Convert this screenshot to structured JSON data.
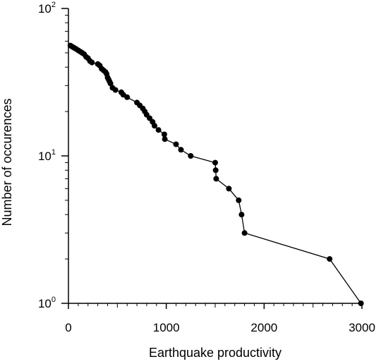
{
  "chart_data": {
    "type": "line",
    "title": "",
    "xlabel": "Earthquake productivity",
    "ylabel": "Number of occurences",
    "xlim": [
      0,
      3000
    ],
    "ylim": [
      1,
      100
    ],
    "yscale": "log",
    "xticks": [
      {
        "value": 0,
        "label": "0"
      },
      {
        "value": 1000,
        "label": "1000"
      },
      {
        "value": 2000,
        "label": "2000"
      },
      {
        "value": 3000,
        "label": "3000"
      }
    ],
    "yticks": [
      {
        "value": 1,
        "base": "10",
        "exp": "0"
      },
      {
        "value": 10,
        "base": "10",
        "exp": "1"
      },
      {
        "value": 100,
        "base": "10",
        "exp": "2"
      }
    ],
    "grid": false,
    "series": [
      {
        "color": "#000000",
        "marker": "filled-circle",
        "points": [
          [
            20,
            56
          ],
          [
            40,
            55
          ],
          [
            60,
            54
          ],
          [
            80,
            53
          ],
          [
            100,
            52
          ],
          [
            120,
            51
          ],
          [
            140,
            50
          ],
          [
            160,
            49
          ],
          [
            180,
            47
          ],
          [
            200,
            46
          ],
          [
            220,
            44
          ],
          [
            240,
            43
          ],
          [
            300,
            42
          ],
          [
            320,
            41
          ],
          [
            340,
            39
          ],
          [
            360,
            38
          ],
          [
            380,
            37
          ],
          [
            390,
            36
          ],
          [
            400,
            34
          ],
          [
            410,
            33
          ],
          [
            420,
            32
          ],
          [
            430,
            31
          ],
          [
            450,
            29
          ],
          [
            480,
            28
          ],
          [
            540,
            27
          ],
          [
            560,
            26
          ],
          [
            600,
            25
          ],
          [
            700,
            23
          ],
          [
            730,
            22
          ],
          [
            760,
            21
          ],
          [
            780,
            20
          ],
          [
            800,
            19
          ],
          [
            830,
            18
          ],
          [
            860,
            17
          ],
          [
            880,
            16
          ],
          [
            920,
            15
          ],
          [
            980,
            14
          ],
          [
            985,
            13
          ],
          [
            1100,
            12
          ],
          [
            1150,
            11
          ],
          [
            1250,
            10
          ],
          [
            1500,
            9
          ],
          [
            1505,
            8
          ],
          [
            1510,
            7
          ],
          [
            1640,
            6
          ],
          [
            1740,
            5
          ],
          [
            1770,
            4
          ],
          [
            1800,
            3
          ],
          [
            2670,
            2
          ],
          [
            2990,
            1
          ]
        ]
      }
    ]
  }
}
